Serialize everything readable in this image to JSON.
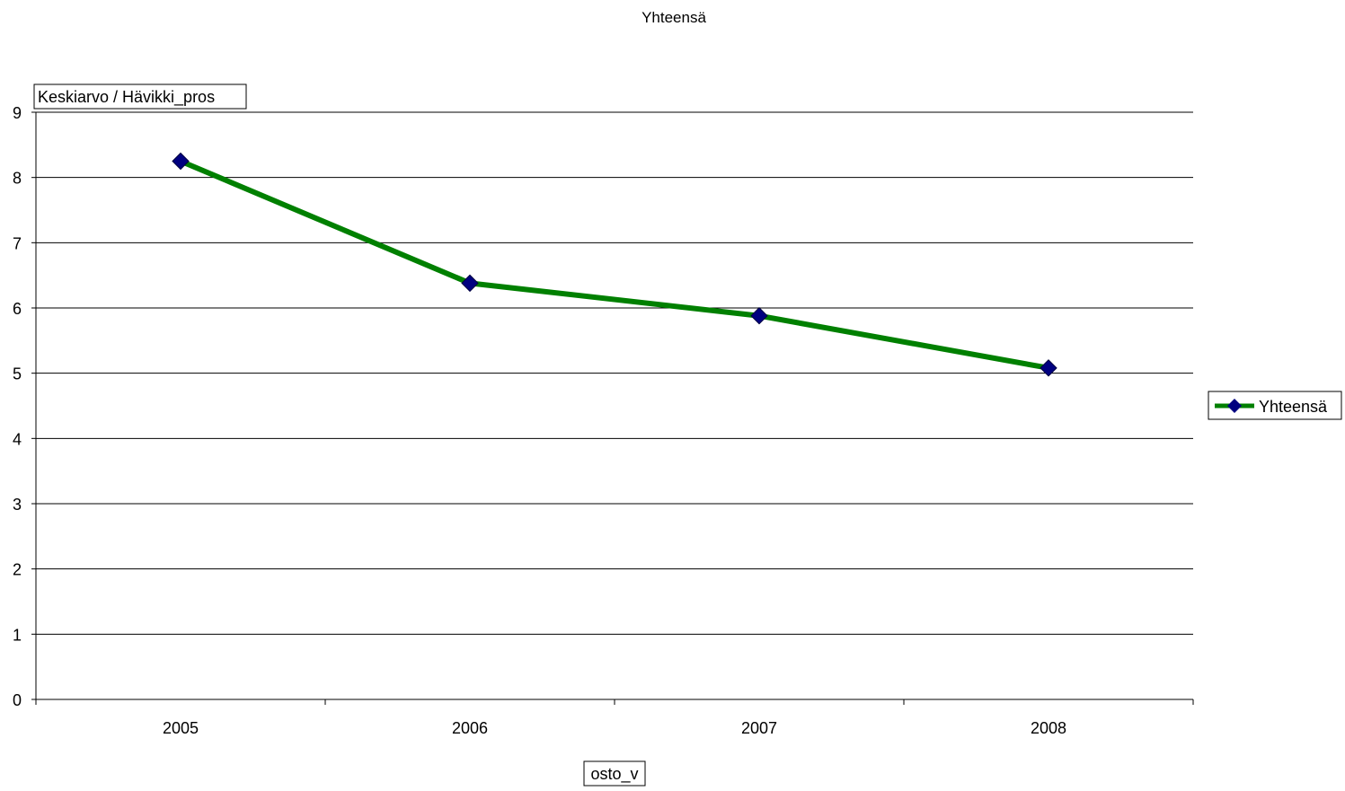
{
  "chart_data": {
    "type": "line",
    "title": "Yhteensä",
    "ylabel": "Keskiarvo / Hävikki_pros",
    "xlabel": "osto_v",
    "categories": [
      "2005",
      "2006",
      "2007",
      "2008"
    ],
    "ylim": [
      0,
      9
    ],
    "yticks": [
      0,
      1,
      2,
      3,
      4,
      5,
      6,
      7,
      8,
      9
    ],
    "grid": true,
    "legend": "right",
    "series": [
      {
        "name": "Yhteensä",
        "values": [
          8.25,
          6.38,
          5.88,
          5.08
        ],
        "line_color": "#008000",
        "marker_color": "#000080",
        "marker": "diamond"
      }
    ]
  }
}
